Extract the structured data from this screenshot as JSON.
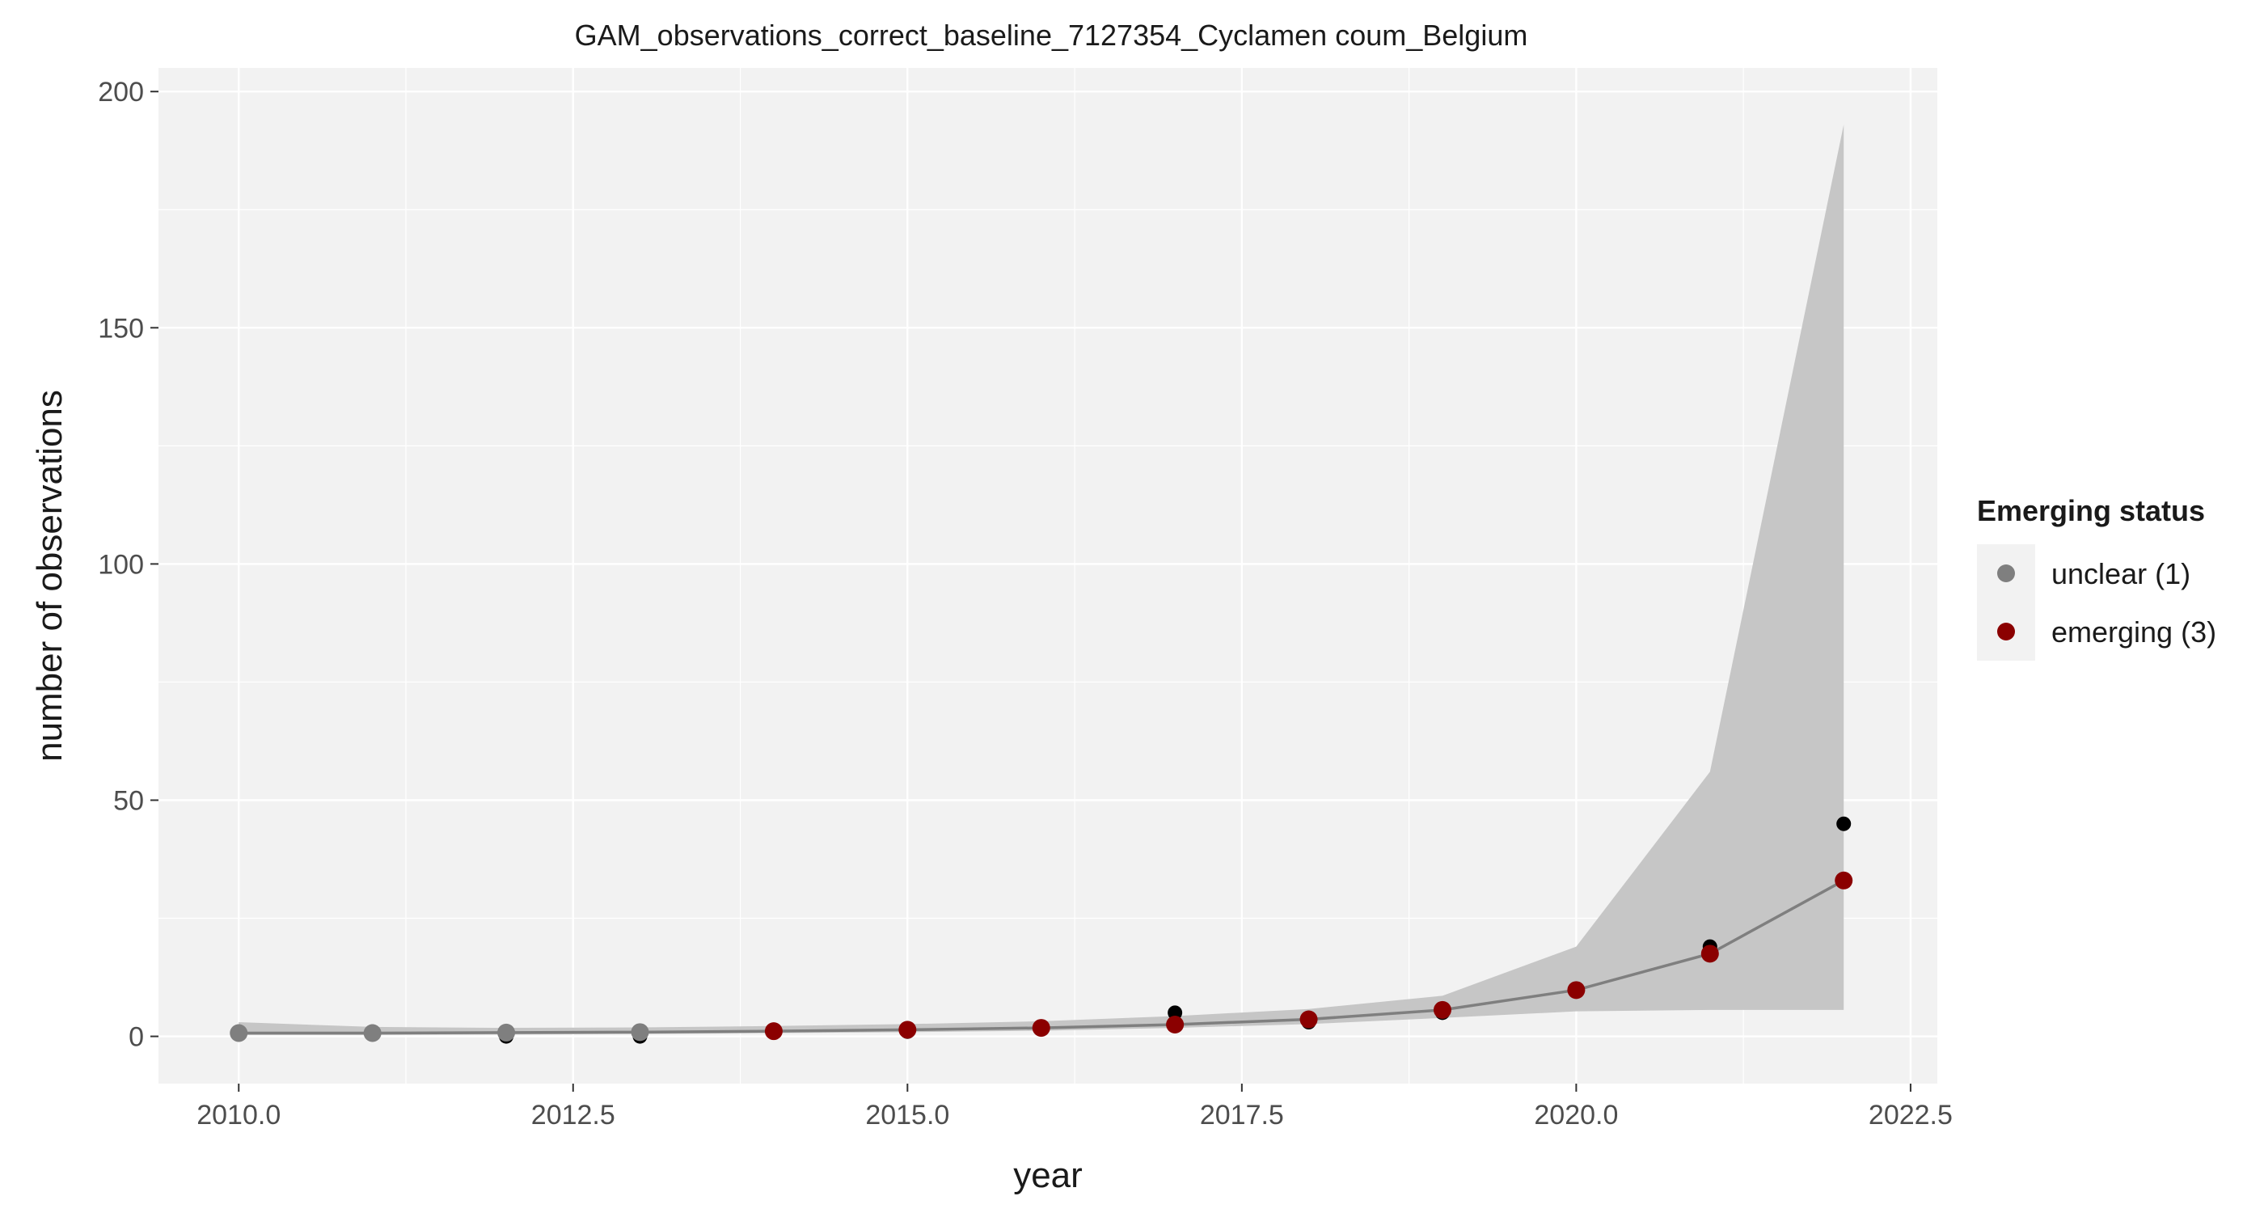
{
  "chart_data": {
    "type": "line",
    "title": "GAM_observations_correct_baseline_7127354_Cyclamen coum_Belgium",
    "xlabel": "year",
    "ylabel": "number of observations",
    "xlim": [
      2009.4,
      2022.7
    ],
    "ylim": [
      -10,
      205
    ],
    "x_ticks": [
      2010,
      2012.5,
      2015,
      2017.5,
      2020,
      2022.5
    ],
    "x_tick_labels": [
      "2010.0",
      "2012.5",
      "2015.0",
      "2017.5",
      "2020.0",
      "2022.5"
    ],
    "y_ticks": [
      0,
      50,
      100,
      150,
      200
    ],
    "y_tick_labels": [
      "0",
      "50",
      "100",
      "150",
      "200"
    ],
    "grid": true,
    "panel_background": "#f2f2f2",
    "grid_color": "#ffffff",
    "observed": {
      "x": [
        2010,
        2011,
        2012,
        2013,
        2014,
        2015,
        2016,
        2017,
        2018,
        2019,
        2020,
        2021,
        2022
      ],
      "y": [
        1,
        1,
        0,
        0,
        1,
        1,
        2,
        5,
        3,
        5,
        10,
        19,
        45
      ],
      "color": "#000000"
    },
    "fit": {
      "x": [
        2010,
        2011,
        2012,
        2013,
        2014,
        2015,
        2016,
        2017,
        2018,
        2019,
        2020,
        2021,
        2022
      ],
      "y": [
        0.7,
        0.7,
        0.8,
        0.9,
        1.1,
        1.4,
        1.8,
        2.5,
        3.6,
        5.6,
        9.8,
        17.5,
        33
      ],
      "lower": [
        0.3,
        0.3,
        0.4,
        0.5,
        0.7,
        0.9,
        1.2,
        1.8,
        2.6,
        3.9,
        5.3,
        5.6,
        5.6
      ],
      "upper": [
        3.0,
        2.0,
        1.8,
        1.9,
        2.2,
        2.6,
        3.2,
        4.3,
        5.8,
        8.6,
        19,
        56,
        193
      ],
      "status": [
        "unclear",
        "unclear",
        "unclear",
        "unclear",
        "emerging",
        "emerging",
        "emerging",
        "emerging",
        "emerging",
        "emerging",
        "emerging",
        "emerging",
        "emerging"
      ],
      "line_color": "#7f7f7f",
      "ribbon_color": "#c6c6c6"
    },
    "legend": {
      "title": "Emerging status",
      "position": "right",
      "entries": [
        {
          "key": "unclear",
          "label": "unclear (1)",
          "color": "#7f7f7f"
        },
        {
          "key": "emerging",
          "label": "emerging (3)",
          "color": "#8b0000"
        }
      ]
    }
  }
}
